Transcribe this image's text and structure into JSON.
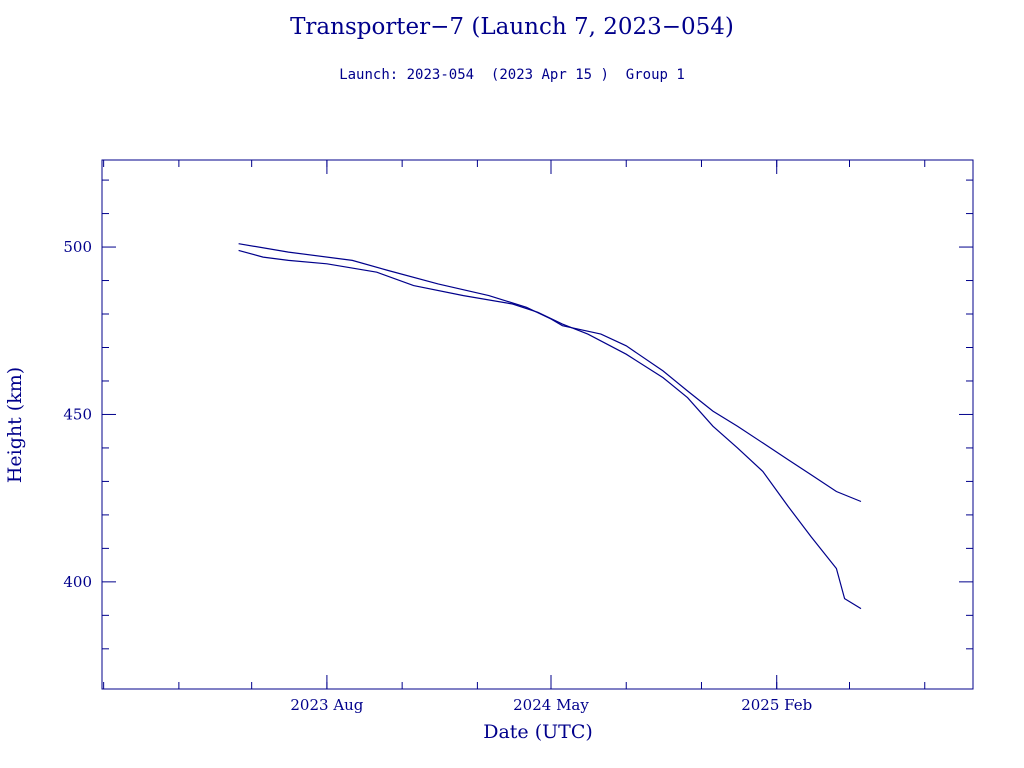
{
  "chart_data": {
    "type": "line",
    "title": "Transporter−7 (Launch 7, 2023−054)",
    "subtitle": "Launch: 2023-054  (2023 Apr 15 )  Group 1",
    "xlabel": "Date (UTC)",
    "ylabel": "Height (km)",
    "xlim": [
      "2022-10-30",
      "2025-09-29"
    ],
    "ylim": [
      368,
      526
    ],
    "x_ticks": [
      {
        "date": "2023-08-01",
        "label": "2023 Aug"
      },
      {
        "date": "2024-05-01",
        "label": "2024 May"
      },
      {
        "date": "2025-02-01",
        "label": "2025 Feb"
      }
    ],
    "y_ticks": [
      400,
      450,
      500
    ],
    "grid": false,
    "color": "#00008b",
    "series": [
      {
        "points": [
          [
            "2023-04-15",
            501.0
          ],
          [
            "2023-06-15",
            498.5
          ],
          [
            "2023-09-01",
            496.0
          ],
          [
            "2023-10-15",
            493.0
          ],
          [
            "2023-12-15",
            489.0
          ],
          [
            "2024-02-15",
            485.5
          ],
          [
            "2024-04-01",
            482.0
          ],
          [
            "2024-05-01",
            478.5
          ],
          [
            "2024-05-15",
            476.5
          ],
          [
            "2024-07-01",
            474.0
          ],
          [
            "2024-08-01",
            470.5
          ],
          [
            "2024-09-15",
            463.0
          ],
          [
            "2024-10-15",
            457.0
          ],
          [
            "2024-11-15",
            451.0
          ],
          [
            "2024-12-15",
            446.5
          ],
          [
            "2025-01-15",
            441.5
          ],
          [
            "2025-02-15",
            436.5
          ],
          [
            "2025-03-15",
            432.0
          ],
          [
            "2025-04-15",
            427.0
          ],
          [
            "2025-05-15",
            424.0
          ]
        ]
      },
      {
        "points": [
          [
            "2023-04-15",
            499.0
          ],
          [
            "2023-05-15",
            497.0
          ],
          [
            "2023-06-15",
            496.0
          ],
          [
            "2023-08-01",
            495.0
          ],
          [
            "2023-10-01",
            492.5
          ],
          [
            "2023-11-15",
            488.5
          ],
          [
            "2024-01-15",
            485.5
          ],
          [
            "2024-03-15",
            483.0
          ],
          [
            "2024-04-15",
            480.5
          ],
          [
            "2024-05-15",
            477.0
          ],
          [
            "2024-06-15",
            474.0
          ],
          [
            "2024-08-01",
            468.0
          ],
          [
            "2024-09-15",
            461.0
          ],
          [
            "2024-10-15",
            455.0
          ],
          [
            "2024-11-15",
            446.5
          ],
          [
            "2024-12-15",
            440.0
          ],
          [
            "2025-01-15",
            433.0
          ],
          [
            "2025-02-15",
            422.5
          ],
          [
            "2025-03-15",
            413.5
          ],
          [
            "2025-04-15",
            404.0
          ],
          [
            "2025-04-25",
            395.0
          ],
          [
            "2025-05-15",
            392.0
          ]
        ]
      }
    ]
  }
}
